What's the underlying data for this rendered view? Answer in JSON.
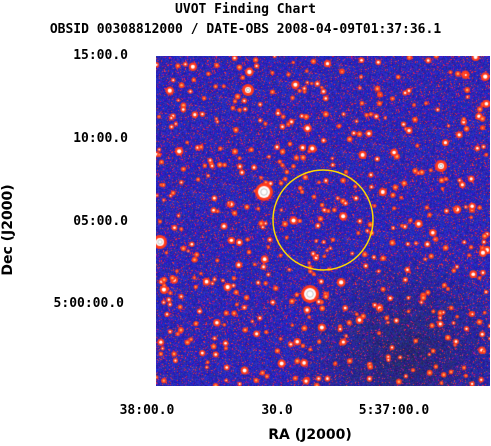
{
  "title": "UVOT Finding Chart",
  "subtitle": "OBSID 00308812000 / DATE-OBS 2008-04-09T01:37:36.1",
  "axes": {
    "xlabel": "RA (J2000)",
    "ylabel": "Dec (J2000)",
    "xticks": [
      "38:00.0",
      "30.0",
      "5:37:00.0"
    ],
    "yticks": [
      "15:00.0",
      "10:00.0",
      "05:00.0",
      "5:00:00.0"
    ]
  },
  "colors": {
    "background": "#2020c0",
    "stars": "#ff3a1a",
    "bright_stars": "#ffffff",
    "marker": "#ffd800"
  },
  "image": {
    "description_icons": [
      "field-circle-marker",
      "bright-star-left",
      "bright-star-bottom"
    ]
  }
}
